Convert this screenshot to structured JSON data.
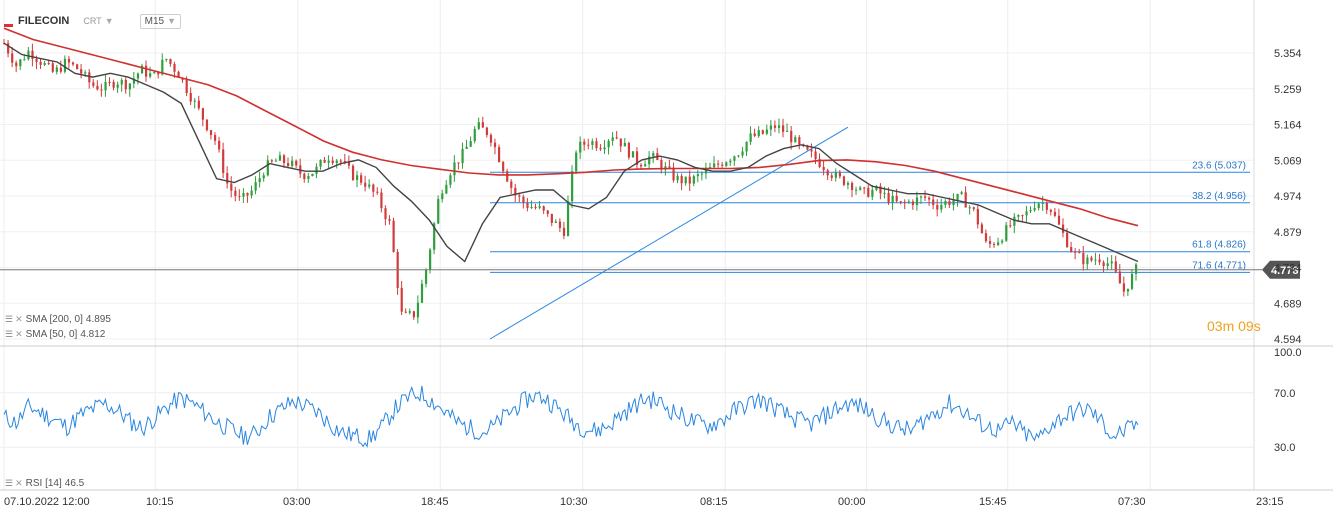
{
  "header": {
    "symbol": "FILECOIN",
    "subtype": "CRT",
    "timeframe": "M15",
    "brand_color": "#e03030"
  },
  "indicators": {
    "sma200": {
      "label": "SMA [200, 0]",
      "value": "4.895",
      "color": "#d0302e"
    },
    "sma50": {
      "label": "SMA [50, 0]",
      "value": "4.812",
      "color": "#444444"
    },
    "rsi": {
      "label": "RSI [14]",
      "value": "46.5",
      "color": "#2a86e0"
    }
  },
  "countdown": {
    "minutes": "03",
    "min_unit": "m",
    "seconds": "09",
    "sec_unit": "s"
  },
  "current_price": {
    "label": "4.778",
    "value": 4.778,
    "color": "#555555"
  },
  "chart_data": [
    {
      "type": "candlestick",
      "title": "FILECOIN",
      "y_ticks": [
        "5.354",
        "5.259",
        "5.164",
        "5.069",
        "4.974",
        "4.879",
        "4.784",
        "4.689",
        "4.594"
      ],
      "ylim": [
        4.594,
        5.354
      ],
      "x_ticks": [
        "07.10.2022 12:00",
        "10:15",
        "03:00",
        "18:45",
        "10:30",
        "08:15",
        "00:00",
        "15:45",
        "07:30",
        "23:15"
      ],
      "fibonacci": [
        {
          "label": "23.6 (5.037)",
          "value": 5.037
        },
        {
          "label": "38.2 (4.956)",
          "value": 4.956
        },
        {
          "label": "61.8 (4.826)",
          "value": 4.826
        },
        {
          "label": "71.6 (4.771)",
          "value": 4.771
        }
      ],
      "trendline": {
        "from": 4.594,
        "to": 5.157
      },
      "price_path": [
        5.38,
        5.32,
        5.36,
        5.33,
        5.3,
        5.33,
        5.31,
        5.27,
        5.26,
        5.28,
        5.27,
        5.31,
        5.29,
        5.34,
        5.3,
        5.24,
        5.18,
        5.12,
        5.0,
        4.96,
        4.99,
        5.05,
        5.07,
        5.06,
        5.03,
        5.04,
        5.08,
        5.07,
        5.03,
        5.01,
        4.97,
        4.9,
        4.65,
        4.66,
        4.79,
        4.98,
        5.05,
        5.09,
        5.16,
        5.14,
        5.06,
        4.98,
        4.95,
        4.94,
        4.91,
        4.88,
        5.1,
        5.12,
        5.11,
        5.14,
        5.1,
        5.06,
        5.08,
        5.05,
        5.02,
        5.01,
        5.03,
        5.05,
        5.07,
        5.09,
        5.13,
        5.14,
        5.16,
        5.14,
        5.1,
        5.08,
        5.05,
        5.02,
        5.01,
        4.98,
        4.99,
        4.97,
        4.95,
        4.96,
        4.97,
        4.95,
        4.96,
        4.97,
        4.93,
        4.84,
        4.86,
        4.9,
        4.92,
        4.96,
        4.95,
        4.88,
        4.82,
        4.8,
        4.81,
        4.79,
        4.72,
        4.778
      ],
      "sma50_path": [
        5.38,
        5.35,
        5.34,
        5.33,
        5.3,
        5.29,
        5.3,
        5.29,
        5.27,
        5.25,
        5.22,
        5.12,
        5.02,
        5.01,
        5.03,
        5.06,
        5.05,
        5.04,
        5.04,
        5.06,
        5.07,
        5.05,
        5.0,
        4.96,
        4.91,
        4.84,
        4.8,
        4.9,
        4.97,
        4.98,
        4.99,
        4.99,
        4.95,
        4.94,
        4.97,
        5.04,
        5.07,
        5.08,
        5.07,
        5.05,
        5.04,
        5.04,
        5.05,
        5.08,
        5.1,
        5.11,
        5.1,
        5.06,
        5.03,
        5.0,
        4.99,
        4.98,
        4.98,
        4.97,
        4.96,
        4.95,
        4.93,
        4.91,
        4.9,
        4.9,
        4.88,
        4.86,
        4.84,
        4.82,
        4.8
      ],
      "sma200_path": [
        5.42,
        5.39,
        5.37,
        5.35,
        5.33,
        5.31,
        5.29,
        5.27,
        5.24,
        5.2,
        5.16,
        5.12,
        5.09,
        5.07,
        5.055,
        5.045,
        5.035,
        5.03,
        5.03,
        5.033,
        5.037,
        5.043,
        5.046,
        5.047,
        5.047,
        5.047,
        5.05,
        5.058,
        5.068,
        5.07,
        5.065,
        5.055,
        5.04,
        5.02,
        5.0,
        4.98,
        4.96,
        4.94,
        4.915,
        4.895
      ]
    },
    {
      "type": "line",
      "title": "RSI [14]",
      "y_ticks": [
        "100.0",
        "70.0",
        "30.0"
      ],
      "ylim": [
        0,
        100
      ],
      "x_ticks": [
        "07.10.2022 12:00",
        "10:15",
        "03:00",
        "18:45",
        "10:30",
        "08:15",
        "00:00",
        "15:45",
        "07:30",
        "23:15"
      ],
      "last": 46.5,
      "rsi_path": [
        52,
        48,
        60,
        55,
        50,
        45,
        53,
        58,
        62,
        57,
        49,
        44,
        52,
        60,
        66,
        62,
        55,
        48,
        43,
        38,
        40,
        52,
        58,
        64,
        60,
        55,
        46,
        40,
        38,
        36,
        45,
        58,
        66,
        70,
        64,
        56,
        48,
        44,
        41,
        46,
        55,
        62,
        68,
        66,
        58,
        50,
        44,
        42,
        46,
        54,
        60,
        66,
        63,
        57,
        52,
        48,
        46,
        50,
        57,
        62,
        65,
        60,
        54,
        50,
        47,
        52,
        58,
        62,
        60,
        54,
        48,
        44,
        42,
        50,
        56,
        62,
        58,
        50,
        45,
        42,
        48,
        40,
        35,
        46,
        52,
        56,
        58,
        50,
        38,
        42,
        46.5
      ]
    }
  ]
}
